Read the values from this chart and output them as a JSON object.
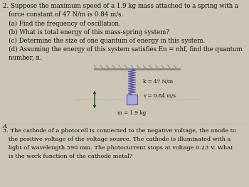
{
  "background_color": "#cdc5b5",
  "text_color": "#111111",
  "p2_line1": "2. Suppose the maximum speed of a 1.9 kg mass attached to a spring with a",
  "p2_line2": "   force constant of 47 N/m is 0.84 m/s.",
  "p2_a": "   (a) Find the frequency of oscillation.",
  "p2_b": "   (b) What is total energy of this mass-spring system?",
  "p2_c": "   (c) Determine the size of one quantum of energy in this system.",
  "p2_d1": "   (d) Assuming the energy of this system satisfies En = nhf, find the quantum",
  "p2_d2": "   number, n.",
  "spring_label": "k = 47 N/m",
  "vel_label": "v = 0.84 m/s",
  "mass_label": "m = 1.9 kg",
  "p3_line1": "3. The cathode of a photocell is connected to the negative voltage, the anode to",
  "p3_line2": "   the positive voltage of the voltage source. The cathode is illuminated with a",
  "p3_line3": "   light of wavelength 590 mm. The photocurrent stops at voltage 0.23 V. What",
  "p3_line4": "   is the work function of the cathode metal?",
  "font_size_text": 6.2,
  "font_size_diag": 5.2,
  "spring_color": "#5555aa",
  "mass_color": "#aaaadd",
  "ceiling_color": "#888888",
  "arrow_color": "#004400",
  "line_color": "#999999"
}
